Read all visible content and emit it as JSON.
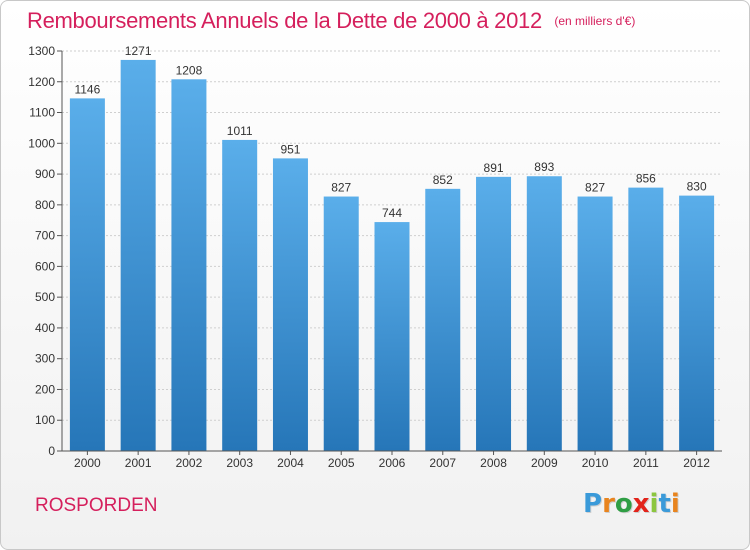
{
  "chart_data": {
    "type": "bar",
    "title": "Remboursements Annuels de la Dette de 2000 à 2012",
    "unit_note": "(en milliers d'€)",
    "categories": [
      "2000",
      "2001",
      "2002",
      "2003",
      "2004",
      "2005",
      "2006",
      "2007",
      "2008",
      "2009",
      "2010",
      "2011",
      "2012"
    ],
    "values": [
      1146,
      1271,
      1208,
      1011,
      951,
      827,
      744,
      852,
      891,
      893,
      827,
      856,
      830
    ],
    "ylim": [
      0,
      1300
    ],
    "yticks": [
      0,
      100,
      200,
      300,
      400,
      500,
      600,
      700,
      800,
      900,
      1000,
      1100,
      1200,
      1300
    ],
    "xlabel": "",
    "ylabel": "",
    "grid": true,
    "legend": "none"
  },
  "footer": {
    "commune": "ROSPORDEN"
  },
  "brand": {
    "letters": [
      "P",
      "r",
      "o",
      "x",
      "i",
      "t",
      "i"
    ],
    "colors": [
      "#3a9ad9",
      "#e8841e",
      "#2f9e44",
      "#e2231a",
      "#8cc63f",
      "#3a9ad9",
      "#e8841e"
    ]
  },
  "colors": {
    "bar_light": "#5aaeea",
    "bar_dark": "#2676b8",
    "accent": "#d51f5c",
    "grid": "#cfcfcf",
    "axis_text": "#333333"
  }
}
